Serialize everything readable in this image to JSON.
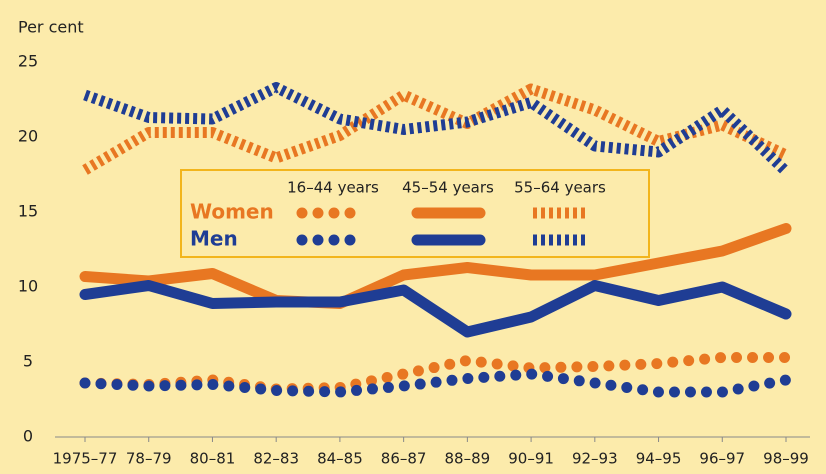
{
  "chart_data": {
    "type": "line",
    "y_label": "Per cent",
    "categories": [
      "1975–77",
      "78–79",
      "80–81",
      "82–83",
      "84–85",
      "86–87",
      "88–89",
      "90–91",
      "92–93",
      "94–95",
      "96–97",
      "98–99"
    ],
    "ylim": [
      0,
      25
    ],
    "yticks": [
      0,
      5,
      10,
      15,
      20,
      25
    ],
    "legend": {
      "rows": [
        "Women",
        "Men"
      ],
      "columns": [
        "16–44 years",
        "45–54 years",
        "55–64 years"
      ],
      "row_colors": [
        "#e87722",
        "#1f3d94"
      ]
    },
    "series": [
      {
        "row": 0,
        "column": 0,
        "style": "dotted",
        "color": "#e87722",
        "values": [
          3.6,
          3.5,
          3.8,
          3.2,
          3.3,
          4.2,
          5.1,
          4.6,
          4.7,
          4.9,
          5.3,
          5.3
        ]
      },
      {
        "row": 1,
        "column": 0,
        "style": "dotted",
        "color": "#1f3d94",
        "values": [
          3.6,
          3.4,
          3.5,
          3.1,
          3.0,
          3.4,
          3.9,
          4.2,
          3.6,
          3.0,
          3.0,
          3.8
        ]
      },
      {
        "row": 0,
        "column": 1,
        "style": "solid",
        "color": "#e87722",
        "values": [
          10.7,
          10.4,
          10.9,
          9.1,
          8.9,
          10.8,
          11.3,
          10.8,
          10.8,
          11.6,
          12.4,
          13.9
        ]
      },
      {
        "row": 1,
        "column": 1,
        "style": "solid",
        "color": "#1f3d94",
        "values": [
          9.5,
          10.1,
          8.9,
          9.0,
          9.0,
          9.8,
          7.0,
          8.0,
          10.1,
          9.1,
          10.0,
          8.2
        ]
      },
      {
        "row": 0,
        "column": 2,
        "style": "striped",
        "color": "#e87722",
        "values": [
          17.8,
          20.3,
          20.3,
          18.6,
          20.1,
          22.8,
          20.9,
          23.2,
          21.8,
          19.7,
          20.8,
          18.8
        ]
      },
      {
        "row": 1,
        "column": 2,
        "style": "striped",
        "color": "#1f3d94",
        "values": [
          22.8,
          21.3,
          21.2,
          23.3,
          21.2,
          20.5,
          21.0,
          22.3,
          19.4,
          19.0,
          21.8,
          17.7
        ]
      }
    ]
  }
}
